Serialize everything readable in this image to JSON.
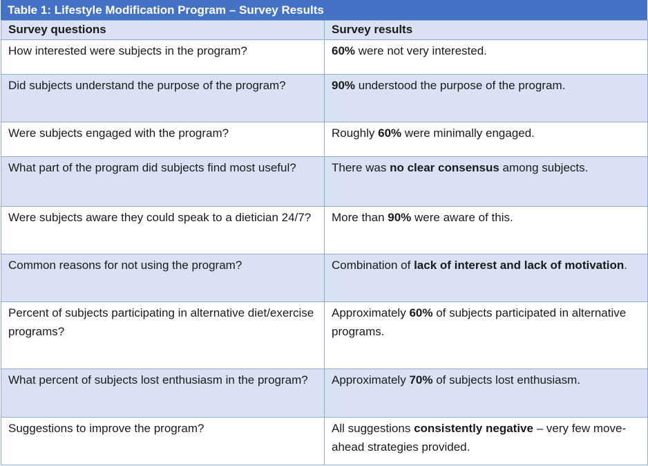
{
  "table": {
    "title": "Table 1: Lifestyle Modification Program – Survey Results",
    "headers": [
      "Survey questions",
      "Survey results"
    ],
    "rows": [
      {
        "question": "How interested were subjects in the program?",
        "result": [
          {
            "text": "60%",
            "bold": true
          },
          {
            "text": " were not very interested.",
            "bold": false
          }
        ]
      },
      {
        "question": "Did subjects understand the purpose of the program?",
        "result": [
          {
            "text": "90%",
            "bold": true
          },
          {
            "text": " understood the purpose of the program.",
            "bold": false
          }
        ]
      },
      {
        "question": "Were subjects engaged with the program?",
        "result": [
          {
            "text": "Roughly ",
            "bold": false
          },
          {
            "text": "60%",
            "bold": true
          },
          {
            "text": " were minimally engaged.",
            "bold": false
          }
        ]
      },
      {
        "question": "What part of the program did subjects find most useful?",
        "result": [
          {
            "text": "There was ",
            "bold": false
          },
          {
            "text": "no clear consensus",
            "bold": true
          },
          {
            "text": " among subjects.",
            "bold": false
          }
        ]
      },
      {
        "question": "Were subjects aware they could speak to a dietician 24/7?",
        "result": [
          {
            "text": "More than ",
            "bold": false
          },
          {
            "text": "90%",
            "bold": true
          },
          {
            "text": " were aware of this.",
            "bold": false
          }
        ]
      },
      {
        "question": "Common reasons for not using the program?",
        "result": [
          {
            "text": "Combination of ",
            "bold": false
          },
          {
            "text": "lack of interest and lack of motivation",
            "bold": true
          },
          {
            "text": ".",
            "bold": false
          }
        ]
      },
      {
        "question": "Percent of subjects participating in alternative diet/exercise programs?",
        "result": [
          {
            "text": "Approximately ",
            "bold": false
          },
          {
            "text": "60%",
            "bold": true
          },
          {
            "text": " of subjects participated in alternative programs.",
            "bold": false
          }
        ]
      },
      {
        "question": "What percent of subjects lost enthusiasm in the program?",
        "result": [
          {
            "text": "Approximately ",
            "bold": false
          },
          {
            "text": "70%",
            "bold": true
          },
          {
            "text": " of subjects lost enthusiasm.",
            "bold": false
          }
        ]
      },
      {
        "question": "Suggestions to improve the program?",
        "result": [
          {
            "text": "All suggestions ",
            "bold": false
          },
          {
            "text": "consistently negative",
            "bold": true
          },
          {
            "text": " – very few move-ahead strategies provided.",
            "bold": false
          }
        ]
      }
    ]
  }
}
